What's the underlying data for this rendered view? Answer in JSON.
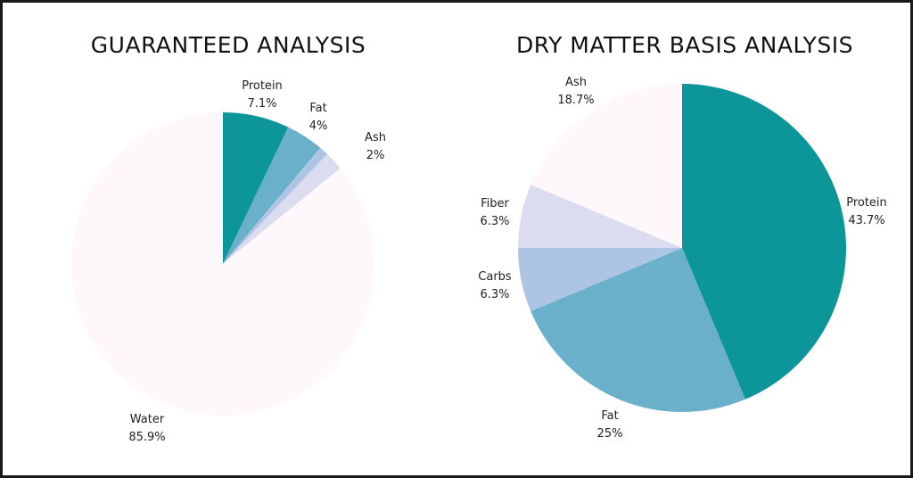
{
  "colors": {
    "teal": "#0d969a",
    "blue": "#6ab0cb",
    "periwinkle": "#adc4e4",
    "lavender": "#dcdcf0",
    "blush": "#fef8fc"
  },
  "chart_data": [
    {
      "type": "pie",
      "title": "GUARANTEED ANALYSIS",
      "slices": [
        {
          "label": "Protein",
          "value_label": "7.1%",
          "value": 7.1,
          "color": "#0d969a"
        },
        {
          "label": "Fat",
          "value_label": "4%",
          "value": 4.0,
          "color": "#6ab0cb"
        },
        {
          "label": "",
          "value_label": "",
          "value": 1.0,
          "color": "#adc4e4"
        },
        {
          "label": "Ash",
          "value_label": "2%",
          "value": 2.0,
          "color": "#dcdcf0"
        },
        {
          "label": "Water",
          "value_label": "85.9%",
          "value": 85.9,
          "color": "#fef8fc"
        }
      ]
    },
    {
      "type": "pie",
      "title": "DRY MATTER BASIS ANALYSIS",
      "slices": [
        {
          "label": "Protein",
          "value_label": "43.7%",
          "value": 43.7,
          "color": "#0d969a"
        },
        {
          "label": "Fat",
          "value_label": "25%",
          "value": 25.0,
          "color": "#6ab0cb"
        },
        {
          "label": "Carbs",
          "value_label": "6.3%",
          "value": 6.3,
          "color": "#adc4e4"
        },
        {
          "label": "Fiber",
          "value_label": "6.3%",
          "value": 6.3,
          "color": "#dcdcf0"
        },
        {
          "label": "Ash",
          "value_label": "18.7%",
          "value": 18.7,
          "color": "#fef8fc"
        }
      ]
    }
  ]
}
